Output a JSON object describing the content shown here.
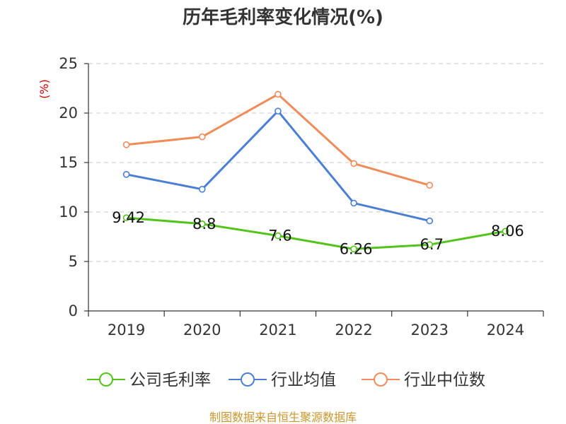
{
  "chart_data": {
    "type": "line",
    "title": "历年毛利率变化情况(%)",
    "ylabel": "(%)",
    "xlabel": "",
    "categories": [
      "2019",
      "2020",
      "2021",
      "2022",
      "2023",
      "2024"
    ],
    "ylim": [
      0,
      25
    ],
    "yticks": [
      0,
      5,
      10,
      15,
      20,
      25
    ],
    "grid": true,
    "legend_position": "bottom",
    "series": [
      {
        "name": "公司毛利率",
        "color": "#52c41a",
        "values": [
          9.42,
          8.8,
          7.6,
          6.26,
          6.7,
          8.06
        ],
        "labels": [
          "9.42",
          "8.8",
          "7.6",
          "6.26",
          "6.7",
          "8.06"
        ]
      },
      {
        "name": "行业均值",
        "color": "#4a7fd4",
        "values": [
          13.8,
          12.3,
          20.2,
          10.9,
          9.1,
          null
        ]
      },
      {
        "name": "行业中位数",
        "color": "#f08c5a",
        "values": [
          16.8,
          17.6,
          21.9,
          14.9,
          12.7,
          null
        ]
      }
    ],
    "source": "制图数据来自恒生聚源数据库"
  }
}
